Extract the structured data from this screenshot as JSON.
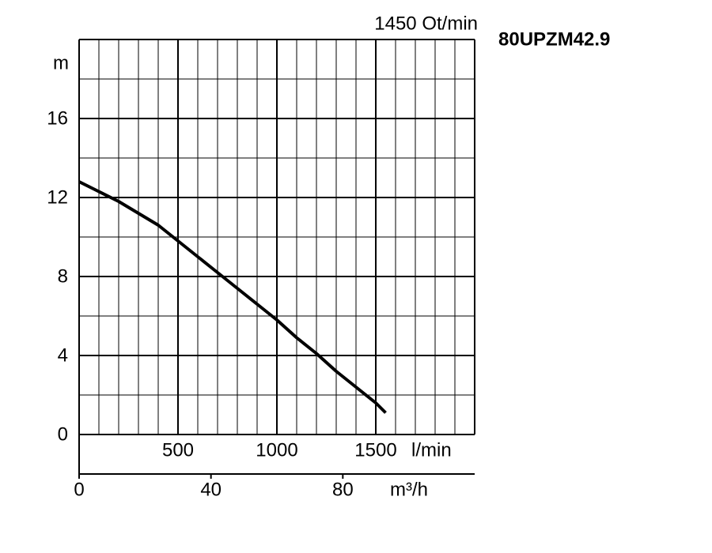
{
  "chart_data": {
    "type": "line",
    "title": "80UPZM42.9",
    "subtitle": "1450 Ot/min",
    "ylabel": "m",
    "xlabel": "l/min",
    "x2label": "m³/h",
    "x": [
      0,
      100,
      200,
      300,
      400,
      500,
      600,
      700,
      800,
      900,
      1000,
      1100,
      1200,
      1300,
      1400,
      1500,
      1550
    ],
    "series": [
      {
        "color": "#000000",
        "values": [
          12.8,
          12.3,
          11.8,
          11.2,
          10.6,
          9.8,
          9.0,
          8.2,
          7.4,
          6.6,
          5.8,
          4.9,
          4.1,
          3.2,
          2.4,
          1.6,
          1.1
        ]
      }
    ],
    "xlim": [
      0,
      2000
    ],
    "xticks": [
      500,
      1000,
      1500
    ],
    "xgrid": [
      0,
      100,
      200,
      300,
      400,
      500,
      600,
      700,
      800,
      900,
      1000,
      1100,
      1200,
      1300,
      1400,
      1500,
      1600,
      1700,
      1800,
      1900,
      2000
    ],
    "ylim": [
      0,
      20
    ],
    "yticks": [
      0,
      4,
      8,
      12,
      16
    ],
    "ygrid": [
      0,
      2,
      4,
      6,
      8,
      10,
      12,
      14,
      16,
      18,
      20
    ],
    "x2lim": [
      0,
      120
    ],
    "x2ticks": [
      0,
      40,
      80
    ],
    "grid": true
  }
}
